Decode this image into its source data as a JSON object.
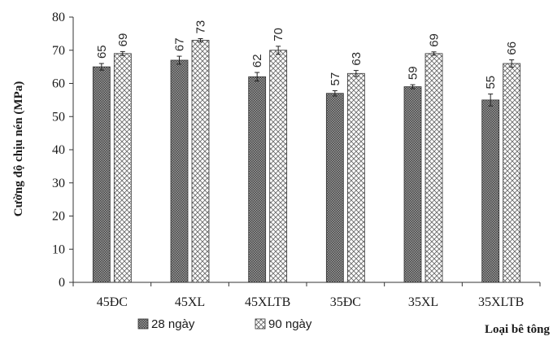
{
  "chart_data": {
    "type": "bar",
    "title": "",
    "xlabel": "Loại bê tông",
    "ylabel": "Cường độ chịu nén (MPa)",
    "ylim": [
      0,
      80
    ],
    "yticks": [
      "0",
      "10",
      "20",
      "30",
      "40",
      "50",
      "60",
      "70",
      "80"
    ],
    "categories": [
      "45ĐC",
      "45XL",
      "45XLTB",
      "35ĐC",
      "35XL",
      "35XLTB"
    ],
    "series": [
      {
        "name": "28 ngày",
        "values": [
          65,
          67,
          62,
          57,
          59,
          55
        ],
        "labels": [
          "65",
          "67",
          "62",
          "57",
          "59",
          "55"
        ],
        "errors": [
          1.0,
          1.2,
          1.3,
          0.8,
          0.6,
          1.8
        ],
        "pattern": "dots",
        "color": "#555555"
      },
      {
        "name": "90 ngày",
        "values": [
          69,
          73,
          70,
          63,
          69,
          66
        ],
        "labels": [
          "69",
          "73",
          "70",
          "63",
          "69",
          "66"
        ],
        "errors": [
          0.6,
          0.5,
          1.2,
          0.9,
          0.5,
          1.1
        ],
        "pattern": "crosshatch",
        "color": "#777777"
      }
    ],
    "legend": "bottom",
    "grid": false
  }
}
